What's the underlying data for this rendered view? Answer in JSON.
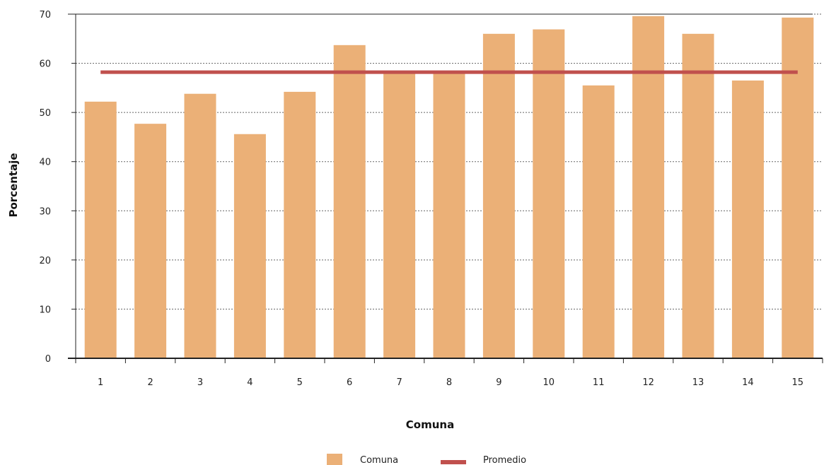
{
  "chart_data": {
    "type": "bar",
    "categories": [
      "1",
      "2",
      "3",
      "4",
      "5",
      "6",
      "7",
      "8",
      "9",
      "10",
      "11",
      "12",
      "13",
      "14",
      "15"
    ],
    "series": [
      {
        "name": "Comuna",
        "type": "bar",
        "color": "#ebb077",
        "values": [
          52.2,
          47.7,
          53.8,
          45.6,
          54.2,
          63.7,
          58.0,
          58.0,
          66.0,
          66.9,
          55.5,
          69.6,
          66.0,
          56.5,
          69.3
        ]
      },
      {
        "name": "Promedio",
        "type": "line",
        "color": "#c0504d",
        "values": [
          58.2,
          58.2,
          58.2,
          58.2,
          58.2,
          58.2,
          58.2,
          58.2,
          58.2,
          58.2,
          58.2,
          58.2,
          58.2,
          58.2,
          58.2
        ]
      }
    ],
    "title": "",
    "xlabel": "Comuna",
    "ylabel": "Porcentaje",
    "ylim": [
      0,
      70
    ],
    "yticks": [
      0,
      10,
      20,
      30,
      40,
      50,
      60,
      70
    ],
    "grid": "horizontal-dotted",
    "legend": {
      "position": "bottom",
      "entries": [
        "Comuna",
        "Promedio"
      ]
    }
  }
}
